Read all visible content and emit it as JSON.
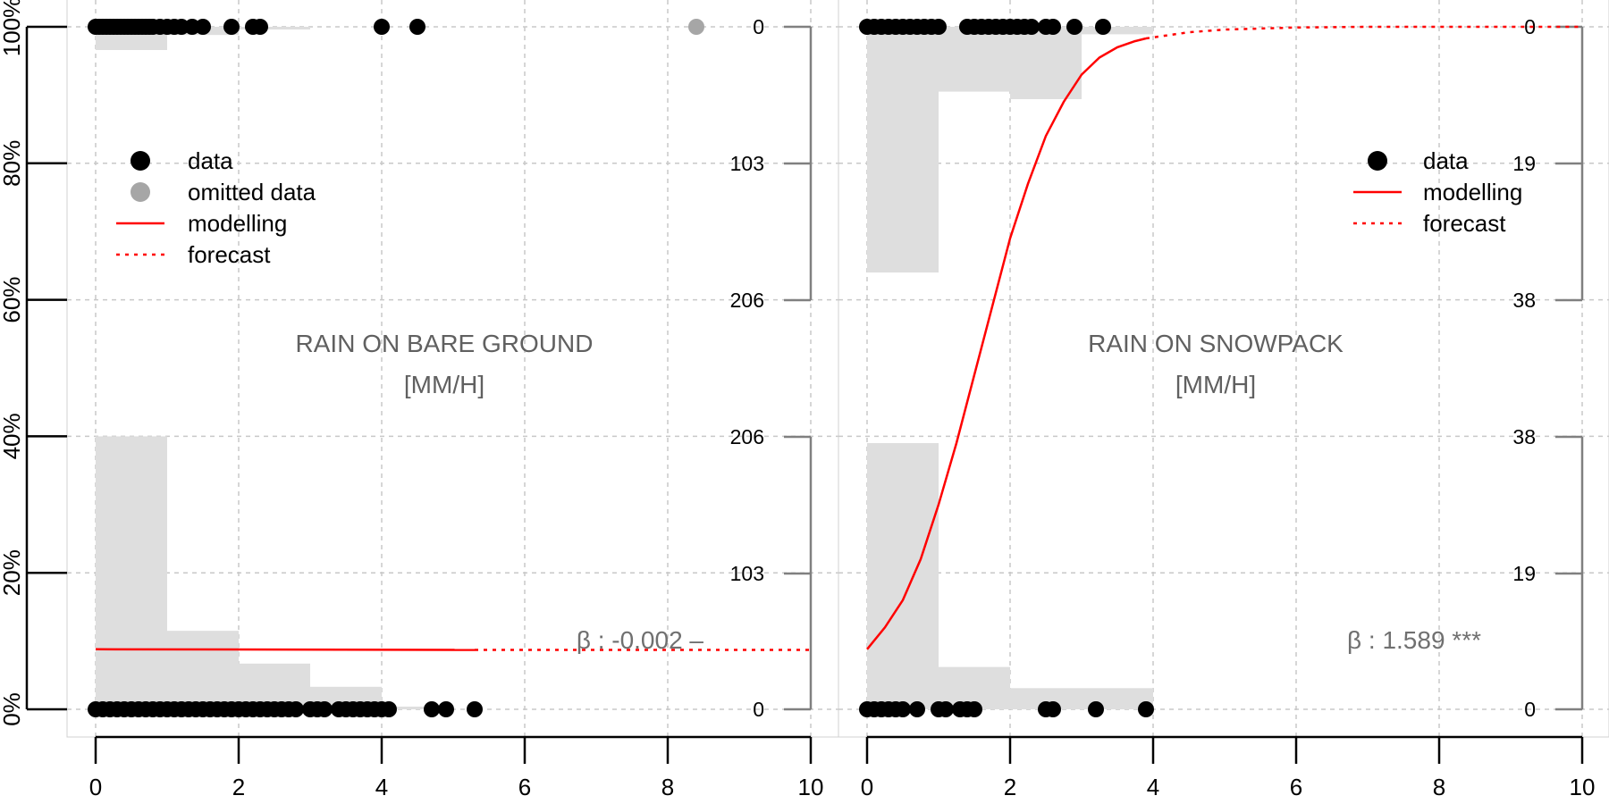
{
  "chart_data": [
    {
      "type": "scatter",
      "title": "RAIN ON BARE GROUND",
      "xlabel": "[MM/H]",
      "xlim": [
        0,
        10
      ],
      "ylim": [
        0,
        1
      ],
      "x_ticks": [
        "0",
        "2",
        "4",
        "6",
        "8",
        "10"
      ],
      "y_ticks": [
        "0%",
        "20%",
        "40%",
        "60%",
        "80%",
        "100%"
      ],
      "right_ticks_bottom": [
        "0",
        "103",
        "206"
      ],
      "right_ticks_top": [
        "0",
        "103",
        "206"
      ],
      "legend": {
        "position": "top-left",
        "items": [
          {
            "label": "data",
            "kind": "dot",
            "color": "#000000"
          },
          {
            "label": "omitted data",
            "kind": "dot",
            "color": "#a6a6a6"
          },
          {
            "label": "modelling",
            "kind": "line",
            "color": "#ff0000"
          },
          {
            "label": "forecast",
            "kind": "dash",
            "color": "#ff0000"
          }
        ]
      },
      "annotation": "β : -0.002 –",
      "grid": true,
      "hist_bottom": [
        {
          "x0": 0,
          "x1": 1,
          "v": 0.4
        },
        {
          "x0": 1,
          "x1": 2,
          "v": 0.115
        },
        {
          "x0": 2,
          "x1": 3,
          "v": 0.067
        },
        {
          "x0": 3,
          "x1": 4,
          "v": 0.033
        },
        {
          "x0": 4,
          "x1": 5,
          "v": 0.004
        }
      ],
      "hist_top": [
        {
          "x0": 0,
          "x1": 1,
          "v": 0.034
        },
        {
          "x0": 1,
          "x1": 2,
          "v": 0.012
        },
        {
          "x0": 2,
          "x1": 3,
          "v": 0.004
        }
      ],
      "points_y1": [
        0.0,
        0.05,
        0.1,
        0.15,
        0.2,
        0.25,
        0.3,
        0.35,
        0.4,
        0.45,
        0.5,
        0.55,
        0.6,
        0.65,
        0.7,
        0.75,
        0.8,
        0.9,
        1.0,
        1.1,
        1.2,
        1.35,
        1.5,
        1.9,
        2.2,
        2.3,
        4.0,
        4.5
      ],
      "points_y0": [
        0.0,
        0.1,
        0.2,
        0.3,
        0.4,
        0.5,
        0.6,
        0.7,
        0.8,
        0.9,
        1.0,
        1.1,
        1.2,
        1.3,
        1.4,
        1.5,
        1.6,
        1.7,
        1.8,
        1.9,
        2.0,
        2.1,
        2.2,
        2.3,
        2.4,
        2.5,
        2.6,
        2.7,
        2.8,
        3.0,
        3.1,
        3.2,
        3.4,
        3.5,
        3.6,
        3.7,
        3.8,
        3.9,
        4.0,
        4.1,
        4.7,
        4.9,
        5.3
      ],
      "omitted_y1": [
        8.4
      ],
      "curve": {
        "color": "#ff0000",
        "model": [
          [
            0,
            0.088
          ],
          [
            5.3,
            0.087
          ]
        ],
        "forecast": [
          [
            5.3,
            0.087
          ],
          [
            10,
            0.087
          ]
        ]
      }
    },
    {
      "type": "scatter",
      "title": "RAIN ON SNOWPACK",
      "xlabel": "[MM/H]",
      "xlim": [
        0,
        10
      ],
      "ylim": [
        0,
        1
      ],
      "x_ticks": [
        "0",
        "2",
        "4",
        "6",
        "8",
        "10"
      ],
      "right_ticks_bottom": [
        "0",
        "19",
        "38"
      ],
      "right_ticks_top": [
        "0",
        "19",
        "38"
      ],
      "legend": {
        "position": "top-right",
        "items": [
          {
            "label": "data",
            "kind": "dot",
            "color": "#000000"
          },
          {
            "label": "modelling",
            "kind": "line",
            "color": "#ff0000"
          },
          {
            "label": "forecast",
            "kind": "dash",
            "color": "#ff0000"
          }
        ]
      },
      "annotation": "β : 1.589 ***",
      "grid": true,
      "hist_bottom": [
        {
          "x0": 0,
          "x1": 1,
          "v": 0.39
        },
        {
          "x0": 1,
          "x1": 2,
          "v": 0.062
        },
        {
          "x0": 2,
          "x1": 3,
          "v": 0.031
        },
        {
          "x0": 3,
          "x1": 4,
          "v": 0.031
        }
      ],
      "hist_top": [
        {
          "x0": 0,
          "x1": 1,
          "v": 0.36
        },
        {
          "x0": 1,
          "x1": 2,
          "v": 0.095
        },
        {
          "x0": 2,
          "x1": 3,
          "v": 0.106
        },
        {
          "x0": 3,
          "x1": 4,
          "v": 0.011
        }
      ],
      "points_y1": [
        0.0,
        0.1,
        0.2,
        0.3,
        0.4,
        0.5,
        0.6,
        0.7,
        0.8,
        0.9,
        1.0,
        1.4,
        1.5,
        1.6,
        1.7,
        1.8,
        1.9,
        2.0,
        2.1,
        2.2,
        2.3,
        2.5,
        2.6,
        2.9,
        3.3
      ],
      "points_y0": [
        0.0,
        0.1,
        0.2,
        0.3,
        0.4,
        0.5,
        0.7,
        1.0,
        1.1,
        1.3,
        1.4,
        1.5,
        2.5,
        2.6,
        3.2,
        3.9
      ],
      "omitted_y1": [],
      "curve": {
        "color": "#ff0000",
        "model": [
          [
            0,
            0.088
          ],
          [
            0.25,
            0.12
          ],
          [
            0.5,
            0.16
          ],
          [
            0.75,
            0.22
          ],
          [
            1.0,
            0.3
          ],
          [
            1.25,
            0.39
          ],
          [
            1.5,
            0.49
          ],
          [
            1.75,
            0.59
          ],
          [
            2.0,
            0.69
          ],
          [
            2.25,
            0.77
          ],
          [
            2.5,
            0.84
          ],
          [
            2.75,
            0.89
          ],
          [
            3.0,
            0.93
          ],
          [
            3.25,
            0.955
          ],
          [
            3.5,
            0.97
          ],
          [
            3.75,
            0.979
          ],
          [
            3.9,
            0.983
          ]
        ],
        "forecast": [
          [
            3.9,
            0.983
          ],
          [
            4.5,
            0.992
          ],
          [
            5.0,
            0.996
          ],
          [
            6.0,
            0.999
          ],
          [
            7.0,
            1.0
          ],
          [
            10.0,
            1.0
          ]
        ]
      }
    }
  ]
}
